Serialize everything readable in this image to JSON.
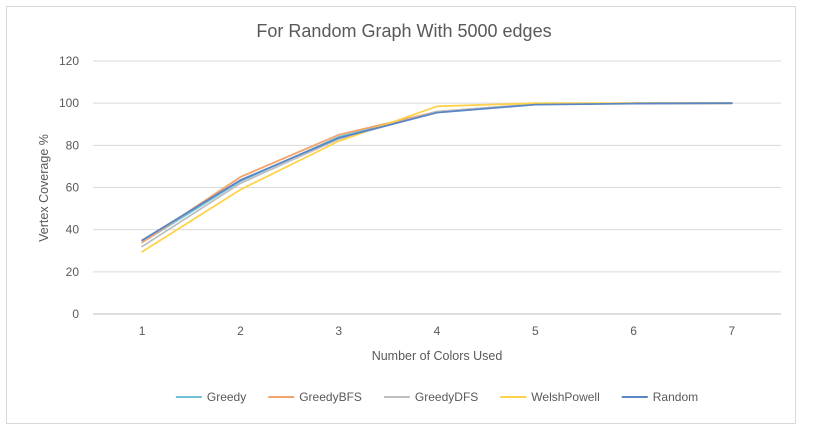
{
  "chart_data": {
    "type": "line",
    "title": "For Random Graph With 5000 edges",
    "xlabel": "Number of Colors Used",
    "ylabel": "Vertex Coverage %",
    "categories": [
      "1",
      "2",
      "3",
      "4",
      "5",
      "6",
      "7"
    ],
    "ylim": [
      0,
      120
    ],
    "yticks": [
      0,
      20,
      40,
      60,
      80,
      100,
      120
    ],
    "grid": true,
    "legend_position": "bottom",
    "series": [
      {
        "name": "Greedy",
        "color": "#70c1d6",
        "values": [
          34,
          63,
          84,
          96,
          99.5,
          100,
          100
        ]
      },
      {
        "name": "GreedyBFS",
        "color": "#f4a36b",
        "values": [
          34,
          65,
          85,
          96,
          99.5,
          100,
          100
        ]
      },
      {
        "name": "GreedyDFS",
        "color": "#bfbfbf",
        "values": [
          32,
          62,
          83,
          96,
          99.5,
          100,
          100
        ]
      },
      {
        "name": "WelshPowell",
        "color": "#ffd24a",
        "values": [
          29.5,
          59,
          82,
          98.5,
          100,
          100,
          100
        ]
      },
      {
        "name": "Random",
        "color": "#5b86c5",
        "values": [
          35,
          63.5,
          83.5,
          95.5,
          99.3,
          99.8,
          100
        ]
      }
    ]
  }
}
